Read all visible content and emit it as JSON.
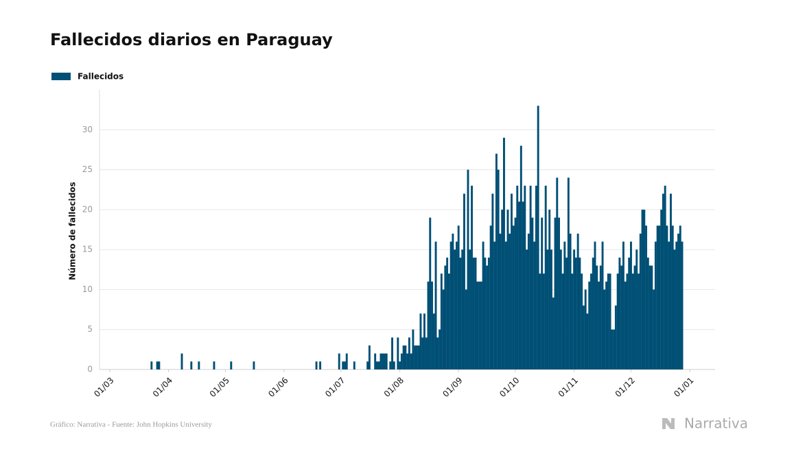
{
  "chart_data": {
    "type": "bar",
    "title": "Fallecidos diarios en Paraguay",
    "y_label": "Número de fallecidos",
    "source": "Gráfico: Narrativa - Fuente: John Hopkins University",
    "brand": "Narrativa",
    "series": [
      {
        "name": "Fallecidos",
        "color": "#004f75",
        "values": [
          0,
          0,
          0,
          0,
          0,
          0,
          0,
          0,
          0,
          0,
          0,
          0,
          0,
          0,
          0,
          0,
          0,
          0,
          0,
          0,
          0,
          0,
          1,
          0,
          0,
          1,
          1,
          0,
          0,
          0,
          0,
          0,
          0,
          0,
          0,
          0,
          0,
          0,
          2,
          0,
          0,
          0,
          0,
          1,
          0,
          0,
          0,
          1,
          0,
          0,
          0,
          0,
          0,
          0,
          0,
          1,
          0,
          0,
          0,
          0,
          0,
          0,
          0,
          0,
          1,
          0,
          0,
          0,
          0,
          0,
          0,
          0,
          0,
          0,
          0,
          0,
          1,
          0,
          0,
          0,
          0,
          0,
          0,
          0,
          0,
          0,
          0,
          0,
          0,
          0,
          0,
          0,
          0,
          0,
          0,
          0,
          0,
          0,
          0,
          0,
          0,
          0,
          0,
          0,
          0,
          0,
          0,
          0,
          0,
          1,
          0,
          1,
          0,
          0,
          0,
          0,
          0,
          0,
          0,
          0,
          0,
          2,
          0,
          1,
          1,
          2,
          0,
          0,
          0,
          1,
          0,
          0,
          0,
          0,
          0,
          0,
          1,
          3,
          0,
          0,
          2,
          1,
          1,
          2,
          2,
          2,
          2,
          0,
          1,
          4,
          1,
          0,
          4,
          1,
          2,
          3,
          3,
          2,
          4,
          2,
          5,
          3,
          3,
          3,
          7,
          4,
          7,
          4,
          11,
          19,
          11,
          7,
          16,
          4,
          5,
          12,
          10,
          13,
          14,
          12,
          16,
          17,
          15,
          16,
          18,
          14,
          15,
          22,
          10,
          25,
          15,
          23,
          14,
          14,
          11,
          11,
          11,
          16,
          14,
          13,
          14,
          18,
          22,
          16,
          27,
          25,
          17,
          20,
          29,
          16,
          20,
          17,
          22,
          18,
          19,
          23,
          21,
          28,
          21,
          23,
          15,
          17,
          23,
          19,
          16,
          23,
          33,
          12,
          19,
          12,
          23,
          15,
          20,
          15,
          9,
          19,
          24,
          19,
          15,
          12,
          16,
          14,
          24,
          17,
          12,
          15,
          14,
          17,
          14,
          12,
          8,
          10,
          7,
          11,
          12,
          14,
          16,
          13,
          11,
          13,
          16,
          10,
          11,
          12,
          12,
          5,
          5,
          8,
          12,
          14,
          13,
          16,
          11,
          12,
          14,
          16,
          12,
          13,
          15,
          12,
          17,
          20,
          20,
          18,
          14,
          13,
          13,
          10,
          16,
          18,
          18,
          20,
          22,
          23,
          18,
          16,
          22,
          18,
          15,
          16,
          17,
          18,
          16,
          null,
          null,
          null,
          null
        ]
      }
    ],
    "categories": [
      "01/03",
      "02/03",
      "03/03",
      "04/03",
      "05/03",
      "06/03",
      "07/03",
      "08/03",
      "09/03",
      "10/03",
      "11/03",
      "12/03",
      "13/03",
      "14/03",
      "15/03",
      "16/03",
      "17/03",
      "18/03",
      "19/03",
      "20/03",
      "21/03",
      "22/03",
      "23/03",
      "24/03",
      "25/03",
      "26/03",
      "27/03",
      "28/03",
      "29/03",
      "30/03",
      "31/03",
      "01/04",
      "02/04",
      "03/04",
      "04/04",
      "05/04",
      "06/04",
      "07/04",
      "08/04",
      "09/04",
      "10/04",
      "11/04",
      "12/04",
      "13/04",
      "14/04",
      "15/04",
      "16/04",
      "17/04",
      "18/04",
      "19/04",
      "20/04",
      "21/04",
      "22/04",
      "23/04",
      "24/04",
      "25/04",
      "26/04",
      "27/04",
      "28/04",
      "29/04",
      "30/04",
      "01/05",
      "02/05",
      "03/05",
      "04/05",
      "05/05",
      "06/05",
      "07/05",
      "08/05",
      "09/05",
      "10/05",
      "11/05",
      "12/05",
      "13/05",
      "14/05",
      "15/05",
      "16/05",
      "17/05",
      "18/05",
      "19/05",
      "20/05",
      "21/05",
      "22/05",
      "23/05",
      "24/05",
      "25/05",
      "26/05",
      "27/05",
      "28/05",
      "29/05",
      "30/05",
      "31/05",
      "01/06",
      "02/06",
      "03/06",
      "04/06",
      "05/06",
      "06/06",
      "07/06",
      "08/06",
      "09/06",
      "10/06",
      "11/06",
      "12/06",
      "13/06",
      "14/06",
      "15/06",
      "16/06",
      "17/06",
      "18/06",
      "19/06",
      "20/06",
      "21/06",
      "22/06",
      "23/06",
      "24/06",
      "25/06",
      "26/06",
      "27/06",
      "28/06",
      "29/06",
      "30/06",
      "01/07",
      "02/07",
      "03/07",
      "04/07",
      "05/07",
      "06/07",
      "07/07",
      "08/07",
      "09/07",
      "10/07",
      "11/07",
      "12/07",
      "13/07",
      "14/07",
      "15/07",
      "16/07",
      "17/07",
      "18/07",
      "19/07",
      "20/07",
      "21/07",
      "22/07",
      "23/07",
      "24/07",
      "25/07",
      "26/07",
      "27/07",
      "28/07",
      "29/07",
      "30/07",
      "31/07",
      "01/08",
      "02/08",
      "03/08",
      "04/08",
      "05/08",
      "06/08",
      "07/08",
      "08/08",
      "09/08",
      "10/08",
      "11/08",
      "12/08",
      "13/08",
      "14/08",
      "15/08",
      "16/08",
      "17/08",
      "18/08",
      "19/08",
      "20/08",
      "21/08",
      "22/08",
      "23/08",
      "24/08",
      "25/08",
      "26/08",
      "27/08",
      "28/08",
      "29/08",
      "30/08",
      "31/08",
      "01/09",
      "02/09",
      "03/09",
      "04/09",
      "05/09",
      "06/09",
      "07/09",
      "08/09",
      "09/09",
      "10/09",
      "11/09",
      "12/09",
      "13/09",
      "14/09",
      "15/09",
      "16/09",
      "17/09",
      "18/09",
      "19/09",
      "20/09",
      "21/09",
      "22/09",
      "23/09",
      "24/09",
      "25/09",
      "26/09",
      "27/09",
      "28/09",
      "29/09",
      "30/09",
      "01/10",
      "02/10",
      "03/10",
      "04/10",
      "05/10",
      "06/10",
      "07/10",
      "08/10",
      "09/10",
      "10/10",
      "11/10",
      "12/10",
      "13/10",
      "14/10",
      "15/10",
      "16/10",
      "17/10",
      "18/10",
      "19/10",
      "20/10",
      "21/10",
      "22/10",
      "23/10",
      "24/10",
      "25/10",
      "26/10",
      "27/10",
      "28/10",
      "29/10",
      "30/10",
      "31/10",
      "01/11",
      "02/11",
      "03/11",
      "04/11",
      "05/11",
      "06/11",
      "07/11",
      "08/11",
      "09/11",
      "10/11",
      "11/11",
      "12/11",
      "13/11",
      "14/11",
      "15/11",
      "16/11",
      "17/11",
      "18/11",
      "19/11",
      "20/11",
      "21/11",
      "22/11",
      "23/11",
      "24/11",
      "25/11",
      "26/11",
      "27/11",
      "28/11",
      "29/11",
      "30/11",
      "01/12",
      "02/12",
      "03/12",
      "04/12",
      "05/12",
      "06/12",
      "07/12",
      "08/12",
      "09/12",
      "10/12",
      "11/12",
      "12/12",
      "13/12",
      "14/12",
      "15/12",
      "16/12",
      "17/12",
      "18/12",
      "19/12",
      "20/12",
      "21/12",
      "22/12",
      "23/12",
      "24/12",
      "25/12",
      "26/12",
      "27/12",
      "28/12",
      "29/12",
      "30/12",
      "31/12",
      "01/01"
    ],
    "xticks": [
      "01/03",
      "01/04",
      "01/05",
      "01/06",
      "01/07",
      "01/08",
      "01/09",
      "01/10",
      "01/11",
      "01/12",
      "01/01"
    ],
    "ylim": [
      0,
      35
    ],
    "yticks": [
      0,
      5,
      10,
      15,
      20,
      25,
      30
    ],
    "grid": true
  }
}
